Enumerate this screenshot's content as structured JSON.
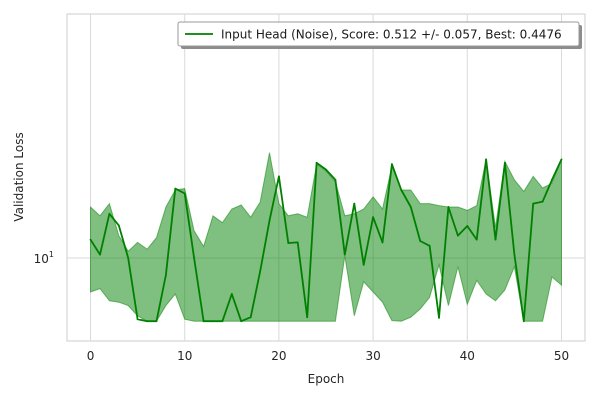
{
  "chart_data": {
    "type": "line",
    "title": "",
    "xlabel": "Epoch",
    "ylabel": "Validation Loss",
    "y_scale": "log",
    "xlim": [
      -2.5,
      52.5
    ],
    "ylim": [
      8.8,
      11.5
    ],
    "x_ticks": [
      0,
      10,
      20,
      30,
      40,
      50
    ],
    "y_ticks": [
      {
        "value": 10,
        "base": "10",
        "exponent": "1"
      }
    ],
    "grid": true,
    "legend_position": "top-right",
    "colors": {
      "line": "#008000",
      "band": "#008000",
      "grid": "#d9d9d9",
      "spine": "#cccccc"
    },
    "series": [
      {
        "name": "Input Head (Noise), Score: 0.512 +/- 0.057,  Best: 0.4476",
        "x": [
          0,
          1,
          2,
          3,
          4,
          5,
          6,
          7,
          8,
          9,
          10,
          11,
          12,
          13,
          14,
          15,
          16,
          17,
          18,
          19,
          20,
          21,
          22,
          23,
          24,
          25,
          26,
          27,
          28,
          29,
          30,
          31,
          32,
          33,
          34,
          35,
          36,
          37,
          38,
          39,
          40,
          41,
          42,
          43,
          44,
          45,
          46,
          47,
          48,
          49,
          50
        ],
        "y": [
          10.27,
          10.05,
          10.65,
          10.48,
          10.0,
          9.1,
          9.07,
          9.07,
          9.75,
          11.02,
          10.95,
          10.0,
          9.07,
          9.07,
          9.07,
          9.47,
          9.07,
          9.13,
          9.8,
          10.55,
          11.2,
          10.22,
          10.23,
          9.13,
          11.4,
          11.3,
          11.15,
          10.05,
          10.8,
          9.9,
          10.6,
          10.23,
          11.38,
          11.0,
          10.75,
          10.25,
          10.18,
          9.12,
          10.75,
          10.33,
          10.47,
          10.27,
          11.45,
          10.27,
          11.4,
          10.05,
          9.07,
          10.8,
          10.83,
          11.15,
          11.45
        ],
        "y_upper": [
          10.75,
          10.62,
          10.8,
          10.33,
          10.1,
          10.23,
          10.13,
          10.3,
          10.75,
          11.0,
          11.02,
          10.4,
          10.17,
          10.62,
          10.52,
          10.72,
          10.78,
          10.6,
          10.82,
          11.55,
          10.8,
          10.62,
          10.65,
          10.6,
          11.38,
          11.28,
          11.12,
          10.62,
          10.65,
          10.72,
          10.9,
          10.72,
          11.35,
          11.0,
          11.0,
          10.8,
          10.8,
          10.77,
          10.75,
          10.75,
          10.7,
          10.77,
          11.45,
          10.45,
          11.42,
          11.15,
          10.98,
          11.2,
          11.03,
          11.1,
          11.45
        ],
        "y_lower": [
          9.5,
          9.55,
          9.37,
          9.35,
          9.3,
          9.15,
          9.07,
          9.07,
          9.3,
          9.47,
          9.1,
          9.07,
          9.07,
          9.07,
          9.07,
          9.07,
          9.07,
          9.07,
          9.07,
          9.07,
          9.07,
          9.07,
          9.07,
          9.07,
          9.07,
          9.07,
          9.07,
          10.03,
          9.15,
          9.65,
          9.5,
          9.35,
          9.08,
          9.07,
          9.13,
          9.25,
          9.42,
          9.9,
          9.3,
          9.87,
          9.32,
          9.67,
          9.47,
          9.37,
          9.53,
          9.87,
          9.07,
          9.07,
          9.07,
          9.72,
          9.6
        ]
      }
    ]
  }
}
